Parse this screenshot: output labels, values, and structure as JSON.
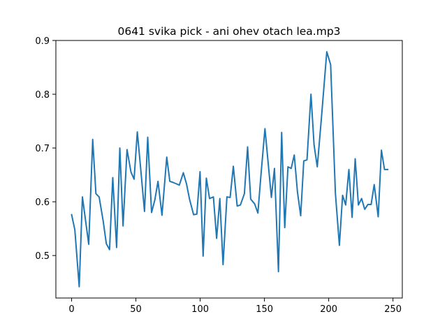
{
  "chart_data": {
    "type": "line",
    "title": "0641 svika pick - ani ohev otach lea.mp3",
    "xlabel": "",
    "ylabel": "",
    "xlim": [
      -12.25,
      257.25
    ],
    "ylim": [
      0.421,
      0.9
    ],
    "xticks": [
      0,
      50,
      100,
      150,
      200,
      250
    ],
    "yticks": [
      0.5,
      0.6,
      0.7,
      0.8,
      0.9
    ],
    "grid": false,
    "legend": "none",
    "series": [
      {
        "name": "series-1",
        "color": "#1f77b4",
        "x": [
          0,
          2.5,
          5.9,
          8.4,
          13.3,
          16.4,
          18.9,
          21.4,
          24.5,
          27.0,
          29.5,
          32.0,
          35.0,
          37.5,
          40.0,
          43.1,
          46.2,
          48.6,
          51.1,
          53.6,
          56.7,
          59.2,
          62.2,
          64.7,
          67.2,
          70.3,
          74.0,
          76.4,
          78.9,
          83.8,
          86.9,
          89.4,
          91.8,
          94.9,
          97.4,
          99.9,
          102.3,
          104.8,
          107.3,
          110.3,
          112.8,
          115.3,
          117.8,
          120.8,
          123.3,
          125.8,
          128.8,
          131.3,
          134.4,
          136.9,
          139.3,
          142.4,
          144.9,
          147.4,
          150.4,
          152.9,
          155.4,
          157.8,
          160.9,
          163.4,
          165.8,
          168.3,
          170.8,
          173.2,
          175.7,
          178.2,
          180.6,
          183.1,
          186.2,
          188.6,
          191.1,
          194.2,
          198.5,
          201.5,
          205.2,
          208.3,
          210.8,
          213.2,
          215.7,
          218.2,
          220.6,
          223.1,
          225.6,
          228.0,
          230.5,
          233.0,
          235.4,
          238.5,
          241.0,
          243.4,
          245.9
        ],
        "y": [
          0.576,
          0.548,
          0.442,
          0.609,
          0.521,
          0.716,
          0.615,
          0.609,
          0.565,
          0.522,
          0.511,
          0.645,
          0.515,
          0.7,
          0.555,
          0.697,
          0.655,
          0.642,
          0.73,
          0.665,
          0.582,
          0.72,
          0.58,
          0.603,
          0.638,
          0.575,
          0.683,
          0.638,
          0.636,
          0.631,
          0.654,
          0.633,
          0.604,
          0.576,
          0.577,
          0.656,
          0.499,
          0.644,
          0.606,
          0.609,
          0.532,
          0.606,
          0.483,
          0.609,
          0.608,
          0.666,
          0.592,
          0.594,
          0.615,
          0.702,
          0.605,
          0.596,
          0.579,
          0.653,
          0.736,
          0.672,
          0.608,
          0.662,
          0.47,
          0.729,
          0.552,
          0.665,
          0.662,
          0.687,
          0.618,
          0.574,
          0.676,
          0.678,
          0.8,
          0.706,
          0.665,
          0.752,
          0.879,
          0.855,
          0.616,
          0.519,
          0.612,
          0.594,
          0.66,
          0.571,
          0.68,
          0.594,
          0.606,
          0.586,
          0.595,
          0.595,
          0.632,
          0.572,
          0.696,
          0.66,
          0.66
        ]
      }
    ]
  }
}
